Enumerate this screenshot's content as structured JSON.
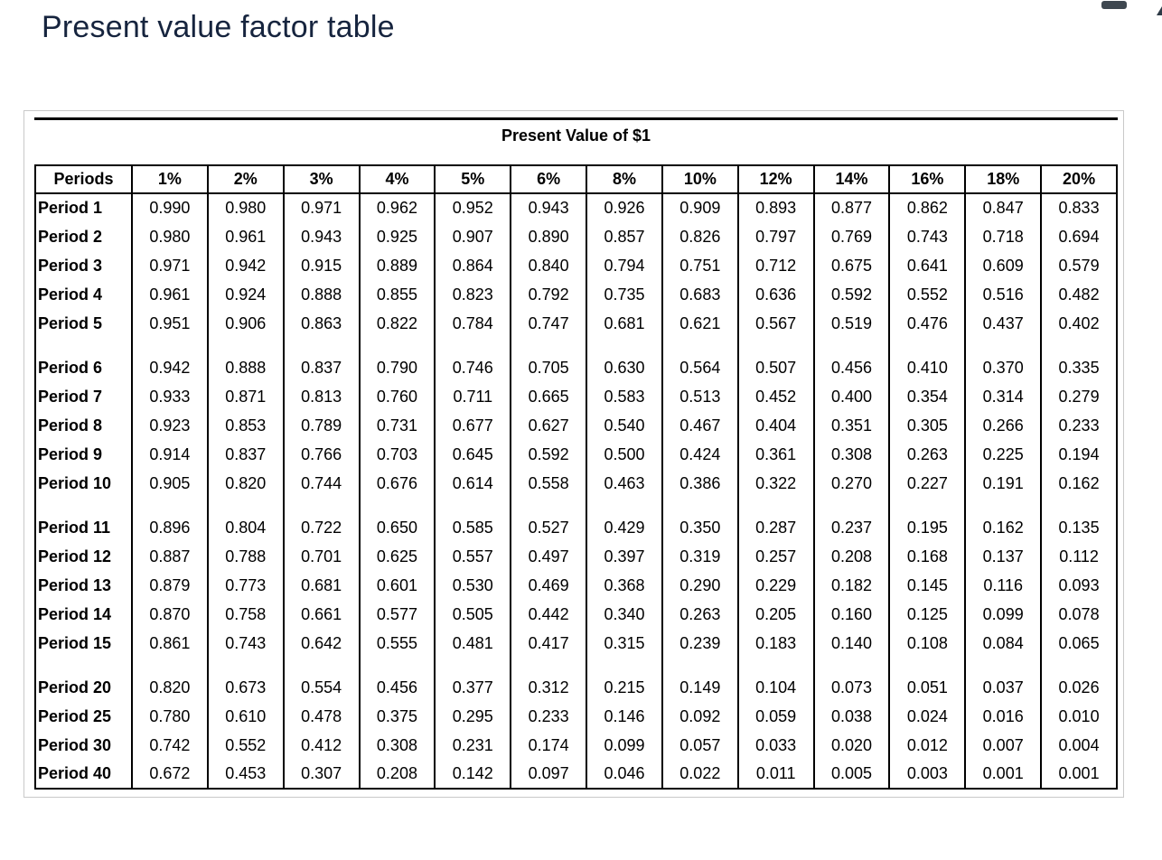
{
  "page": {
    "title": "Present value factor table"
  },
  "colors": {
    "title": "#16243e",
    "table_border": "#000000",
    "card_border": "#c9c9c9",
    "window_fragment": "#3e4750"
  },
  "table": {
    "caption": "Present Value of $1",
    "columns": [
      "Periods",
      "1%",
      "2%",
      "3%",
      "4%",
      "5%",
      "6%",
      "8%",
      "10%",
      "12%",
      "14%",
      "16%",
      "18%",
      "20%"
    ],
    "groups": [
      {
        "rows": [
          {
            "label": "Period 1",
            "values": [
              "0.990",
              "0.980",
              "0.971",
              "0.962",
              "0.952",
              "0.943",
              "0.926",
              "0.909",
              "0.893",
              "0.877",
              "0.862",
              "0.847",
              "0.833"
            ]
          },
          {
            "label": "Period 2",
            "values": [
              "0.980",
              "0.961",
              "0.943",
              "0.925",
              "0.907",
              "0.890",
              "0.857",
              "0.826",
              "0.797",
              "0.769",
              "0.743",
              "0.718",
              "0.694"
            ]
          },
          {
            "label": "Period 3",
            "values": [
              "0.971",
              "0.942",
              "0.915",
              "0.889",
              "0.864",
              "0.840",
              "0.794",
              "0.751",
              "0.712",
              "0.675",
              "0.641",
              "0.609",
              "0.579"
            ]
          },
          {
            "label": "Period 4",
            "values": [
              "0.961",
              "0.924",
              "0.888",
              "0.855",
              "0.823",
              "0.792",
              "0.735",
              "0.683",
              "0.636",
              "0.592",
              "0.552",
              "0.516",
              "0.482"
            ]
          },
          {
            "label": "Period 5",
            "values": [
              "0.951",
              "0.906",
              "0.863",
              "0.822",
              "0.784",
              "0.747",
              "0.681",
              "0.621",
              "0.567",
              "0.519",
              "0.476",
              "0.437",
              "0.402"
            ]
          }
        ]
      },
      {
        "rows": [
          {
            "label": "Period 6",
            "values": [
              "0.942",
              "0.888",
              "0.837",
              "0.790",
              "0.746",
              "0.705",
              "0.630",
              "0.564",
              "0.507",
              "0.456",
              "0.410",
              "0.370",
              "0.335"
            ]
          },
          {
            "label": "Period 7",
            "values": [
              "0.933",
              "0.871",
              "0.813",
              "0.760",
              "0.711",
              "0.665",
              "0.583",
              "0.513",
              "0.452",
              "0.400",
              "0.354",
              "0.314",
              "0.279"
            ]
          },
          {
            "label": "Period 8",
            "values": [
              "0.923",
              "0.853",
              "0.789",
              "0.731",
              "0.677",
              "0.627",
              "0.540",
              "0.467",
              "0.404",
              "0.351",
              "0.305",
              "0.266",
              "0.233"
            ]
          },
          {
            "label": "Period 9",
            "values": [
              "0.914",
              "0.837",
              "0.766",
              "0.703",
              "0.645",
              "0.592",
              "0.500",
              "0.424",
              "0.361",
              "0.308",
              "0.263",
              "0.225",
              "0.194"
            ]
          },
          {
            "label": "Period 10",
            "values": [
              "0.905",
              "0.820",
              "0.744",
              "0.676",
              "0.614",
              "0.558",
              "0.463",
              "0.386",
              "0.322",
              "0.270",
              "0.227",
              "0.191",
              "0.162"
            ]
          }
        ]
      },
      {
        "rows": [
          {
            "label": "Period 11",
            "values": [
              "0.896",
              "0.804",
              "0.722",
              "0.650",
              "0.585",
              "0.527",
              "0.429",
              "0.350",
              "0.287",
              "0.237",
              "0.195",
              "0.162",
              "0.135"
            ]
          },
          {
            "label": "Period 12",
            "values": [
              "0.887",
              "0.788",
              "0.701",
              "0.625",
              "0.557",
              "0.497",
              "0.397",
              "0.319",
              "0.257",
              "0.208",
              "0.168",
              "0.137",
              "0.112"
            ]
          },
          {
            "label": "Period 13",
            "values": [
              "0.879",
              "0.773",
              "0.681",
              "0.601",
              "0.530",
              "0.469",
              "0.368",
              "0.290",
              "0.229",
              "0.182",
              "0.145",
              "0.116",
              "0.093"
            ]
          },
          {
            "label": "Period 14",
            "values": [
              "0.870",
              "0.758",
              "0.661",
              "0.577",
              "0.505",
              "0.442",
              "0.340",
              "0.263",
              "0.205",
              "0.160",
              "0.125",
              "0.099",
              "0.078"
            ]
          },
          {
            "label": "Period 15",
            "values": [
              "0.861",
              "0.743",
              "0.642",
              "0.555",
              "0.481",
              "0.417",
              "0.315",
              "0.239",
              "0.183",
              "0.140",
              "0.108",
              "0.084",
              "0.065"
            ]
          }
        ]
      },
      {
        "rows": [
          {
            "label": "Period 20",
            "values": [
              "0.820",
              "0.673",
              "0.554",
              "0.456",
              "0.377",
              "0.312",
              "0.215",
              "0.149",
              "0.104",
              "0.073",
              "0.051",
              "0.037",
              "0.026"
            ]
          },
          {
            "label": "Period 25",
            "values": [
              "0.780",
              "0.610",
              "0.478",
              "0.375",
              "0.295",
              "0.233",
              "0.146",
              "0.092",
              "0.059",
              "0.038",
              "0.024",
              "0.016",
              "0.010"
            ]
          },
          {
            "label": "Period 30",
            "values": [
              "0.742",
              "0.552",
              "0.412",
              "0.308",
              "0.231",
              "0.174",
              "0.099",
              "0.057",
              "0.033",
              "0.020",
              "0.012",
              "0.007",
              "0.004"
            ]
          },
          {
            "label": "Period 40",
            "values": [
              "0.672",
              "0.453",
              "0.307",
              "0.208",
              "0.142",
              "0.097",
              "0.046",
              "0.022",
              "0.011",
              "0.005",
              "0.003",
              "0.001",
              "0.001"
            ]
          }
        ]
      }
    ]
  }
}
